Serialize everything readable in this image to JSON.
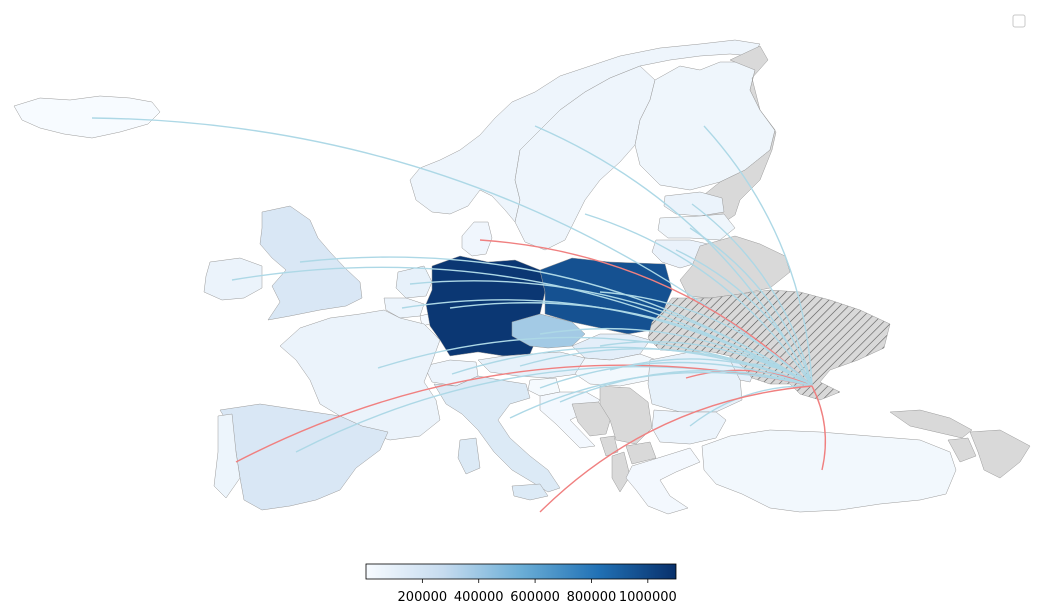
{
  "map": {
    "colors": {
      "flow_arc": "#add8e6",
      "highlight_arc": "#f08080",
      "no_data": "#d9d9d9",
      "source_hatch": "#555555",
      "scale_low": "#f7fbff",
      "scale_high": "#08306b"
    },
    "origin_country": "Ukraine",
    "countries": [
      {
        "name": "Germany",
        "value": 1070000
      },
      {
        "name": "Poland",
        "value": 960000
      },
      {
        "name": "Czech Republic",
        "value": 380000
      },
      {
        "name": "United Kingdom",
        "value": 170000
      },
      {
        "name": "Spain",
        "value": 170000
      },
      {
        "name": "Italy",
        "value": 150000
      },
      {
        "name": "France",
        "value": 70000
      },
      {
        "name": "Netherlands",
        "value": 90000
      },
      {
        "name": "Belgium",
        "value": 60000
      },
      {
        "name": "Austria",
        "value": 90000
      },
      {
        "name": "Switzerland",
        "value": 60000
      },
      {
        "name": "Portugal",
        "value": 55000
      },
      {
        "name": "Slovakia",
        "value": 110000
      },
      {
        "name": "Romania",
        "value": 90000
      },
      {
        "name": "Hungary",
        "value": 30000
      },
      {
        "name": "Bulgaria",
        "value": 60000
      },
      {
        "name": "Moldova",
        "value": 110000
      },
      {
        "name": "Lithuania",
        "value": 75000
      },
      {
        "name": "Latvia",
        "value": 45000
      },
      {
        "name": "Estonia",
        "value": 65000
      },
      {
        "name": "Finland",
        "value": 45000
      },
      {
        "name": "Sweden",
        "value": 50000
      },
      {
        "name": "Norway",
        "value": 50000
      },
      {
        "name": "Denmark",
        "value": 40000
      },
      {
        "name": "Ireland",
        "value": 70000
      },
      {
        "name": "Iceland",
        "value": 2000
      },
      {
        "name": "Greece",
        "value": 25000
      },
      {
        "name": "Turkey",
        "value": 30000
      },
      {
        "name": "Croatia",
        "value": 22000
      },
      {
        "name": "Slovenia",
        "value": 10000
      },
      {
        "name": "Luxembourg",
        "value": 5000
      },
      {
        "name": "Belarus",
        "value": null
      },
      {
        "name": "Serbia",
        "value": null
      },
      {
        "name": "Bosnia and Herzegovina",
        "value": null
      },
      {
        "name": "Montenegro",
        "value": null
      },
      {
        "name": "Albania",
        "value": null
      },
      {
        "name": "North Macedonia",
        "value": null
      },
      {
        "name": "Georgia",
        "value": null
      },
      {
        "name": "Armenia",
        "value": null
      },
      {
        "name": "Azerbaijan",
        "value": null
      },
      {
        "name": "Russia",
        "value": null
      }
    ],
    "flows": [
      {
        "to": "Iceland",
        "highlight": false
      },
      {
        "to": "Norway",
        "highlight": false
      },
      {
        "to": "Sweden",
        "highlight": false
      },
      {
        "to": "Finland",
        "highlight": false
      },
      {
        "to": "Estonia",
        "highlight": false
      },
      {
        "to": "Latvia",
        "highlight": false
      },
      {
        "to": "Lithuania",
        "highlight": false
      },
      {
        "to": "Denmark",
        "highlight": true
      },
      {
        "to": "United Kingdom",
        "highlight": false
      },
      {
        "to": "Ireland",
        "highlight": false
      },
      {
        "to": "Netherlands",
        "highlight": false
      },
      {
        "to": "Germany",
        "highlight": false
      },
      {
        "to": "Poland",
        "highlight": false
      },
      {
        "to": "Czech Republic",
        "highlight": false
      },
      {
        "to": "Belgium",
        "highlight": false
      },
      {
        "to": "France",
        "highlight": false
      },
      {
        "to": "Switzerland",
        "highlight": false
      },
      {
        "to": "Austria",
        "highlight": false
      },
      {
        "to": "Slovakia",
        "highlight": false
      },
      {
        "to": "Hungary",
        "highlight": false
      },
      {
        "to": "Romania",
        "highlight": true
      },
      {
        "to": "Moldova",
        "highlight": false
      },
      {
        "to": "Spain",
        "highlight": false
      },
      {
        "to": "Portugal",
        "highlight": true
      },
      {
        "to": "Italy",
        "highlight": false
      },
      {
        "to": "Croatia",
        "highlight": false
      },
      {
        "to": "Slovenia",
        "highlight": false
      },
      {
        "to": "Bulgaria",
        "highlight": false
      },
      {
        "to": "Greece",
        "highlight": true
      },
      {
        "to": "Turkey",
        "highlight": true
      }
    ]
  },
  "colorbar": {
    "min": 0,
    "max": 1100000,
    "ticks": [
      "200000",
      "400000",
      "600000",
      "800000",
      "1000000"
    ],
    "tick_values": [
      200000,
      400000,
      600000,
      800000,
      1000000
    ]
  },
  "legend": {
    "entries": []
  }
}
